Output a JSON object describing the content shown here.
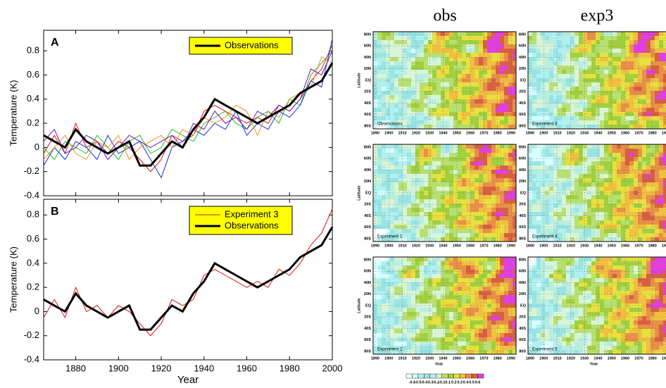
{
  "chart_data": [
    {
      "type": "line",
      "panel_label": "A",
      "ylabel": "Temperature (K)",
      "legend": "top-center",
      "x": [
        1865,
        1870,
        1875,
        1880,
        1885,
        1890,
        1895,
        1900,
        1905,
        1910,
        1915,
        1920,
        1925,
        1930,
        1935,
        1940,
        1945,
        1950,
        1955,
        1960,
        1965,
        1970,
        1975,
        1980,
        1985,
        1990,
        1995,
        2000
      ],
      "series": [
        {
          "color": "#e01010",
          "values": [
            -0.05,
            0.1,
            -0.05,
            0.2,
            0.0,
            0.05,
            -0.05,
            0.05,
            0.0,
            -0.1,
            -0.2,
            -0.1,
            0.1,
            0.05,
            0.1,
            0.3,
            0.35,
            0.3,
            0.25,
            0.2,
            0.25,
            0.2,
            0.35,
            0.3,
            0.4,
            0.55,
            0.65,
            0.85
          ]
        },
        {
          "color": "#20c020",
          "values": [
            0.0,
            -0.1,
            0.05,
            0.0,
            -0.05,
            0.1,
            0.0,
            -0.1,
            0.05,
            0.1,
            -0.05,
            0.0,
            0.15,
            0.1,
            0.05,
            0.2,
            0.25,
            0.3,
            0.2,
            0.15,
            0.25,
            0.3,
            0.2,
            0.4,
            0.35,
            0.6,
            0.7,
            0.8
          ]
        },
        {
          "color": "#1030e0",
          "values": [
            -0.15,
            0.0,
            -0.1,
            0.05,
            0.0,
            -0.1,
            0.1,
            -0.05,
            0.0,
            0.05,
            -0.1,
            -0.25,
            0.0,
            0.05,
            0.15,
            0.1,
            0.2,
            0.15,
            0.3,
            0.1,
            0.2,
            0.15,
            0.3,
            0.25,
            0.35,
            0.55,
            0.5,
            0.9
          ]
        },
        {
          "color": "#f09020",
          "values": [
            -0.1,
            0.0,
            0.1,
            -0.05,
            -0.1,
            0.05,
            0.0,
            0.1,
            -0.1,
            0.0,
            0.05,
            0.1,
            0.0,
            0.15,
            0.1,
            0.25,
            0.2,
            0.25,
            0.35,
            0.3,
            0.1,
            0.3,
            0.25,
            0.4,
            0.45,
            0.5,
            0.75,
            0.7
          ]
        },
        {
          "color": "#7010b0",
          "values": [
            0.05,
            0.15,
            -0.05,
            0.0,
            0.1,
            0.05,
            -0.1,
            0.0,
            0.1,
            0.05,
            0.0,
            0.05,
            0.1,
            0.0,
            0.2,
            0.15,
            0.3,
            0.2,
            0.25,
            0.15,
            0.3,
            0.25,
            0.35,
            0.3,
            0.4,
            0.65,
            0.6,
            0.8
          ]
        },
        {
          "name": "Observations",
          "color": "#000000",
          "values": [
            0.1,
            0.05,
            0.0,
            0.15,
            0.05,
            0.0,
            -0.05,
            0.0,
            0.05,
            -0.15,
            -0.15,
            -0.05,
            0.05,
            0.0,
            0.15,
            0.25,
            0.4,
            0.35,
            0.3,
            0.25,
            0.2,
            0.25,
            0.3,
            0.35,
            0.45,
            0.5,
            0.55,
            0.7
          ]
        }
      ],
      "xlim": [
        1865,
        2000
      ],
      "xticks": [
        1880,
        1900,
        1920,
        1940,
        1960,
        1980,
        2000
      ],
      "ylim": [
        -0.4,
        0.97
      ],
      "yticks": [
        -0.4,
        -0.2,
        0,
        0.2,
        0.4,
        0.6,
        0.8
      ]
    },
    {
      "type": "line",
      "panel_label": "B",
      "ylabel": "Temperature (K)",
      "xlabel": "Year",
      "legend": "top-center",
      "x": [
        1865,
        1870,
        1875,
        1880,
        1885,
        1890,
        1895,
        1900,
        1905,
        1910,
        1915,
        1920,
        1925,
        1930,
        1935,
        1940,
        1945,
        1950,
        1955,
        1960,
        1965,
        1970,
        1975,
        1980,
        1985,
        1990,
        1995,
        2000
      ],
      "series": [
        {
          "name": "Experiment 3",
          "color": "#e01010",
          "values": [
            -0.05,
            0.1,
            -0.05,
            0.2,
            0.0,
            0.05,
            -0.05,
            0.05,
            0.0,
            -0.1,
            -0.2,
            -0.1,
            0.1,
            0.05,
            0.1,
            0.3,
            0.35,
            0.3,
            0.25,
            0.2,
            0.25,
            0.2,
            0.35,
            0.3,
            0.4,
            0.55,
            0.65,
            0.85
          ]
        },
        {
          "name": "Observations",
          "color": "#000000",
          "values": [
            0.1,
            0.05,
            0.0,
            0.15,
            0.05,
            0.0,
            -0.05,
            0.0,
            0.05,
            -0.15,
            -0.15,
            -0.05,
            0.05,
            0.0,
            0.15,
            0.25,
            0.4,
            0.35,
            0.3,
            0.25,
            0.2,
            0.25,
            0.3,
            0.35,
            0.45,
            0.5,
            0.55,
            0.7
          ]
        }
      ],
      "xlim": [
        1865,
        2000
      ],
      "xticks": [
        1880,
        1900,
        1920,
        1940,
        1960,
        1980,
        2000
      ],
      "ylim": [
        -0.4,
        0.93
      ],
      "yticks": [
        -0.4,
        -0.2,
        0,
        0.2,
        0.4,
        0.6,
        0.8
      ]
    }
  ],
  "maps": {
    "titles": [
      "obs",
      "exp3"
    ],
    "panels": [
      "Observations",
      "Experiment 3",
      "Experiment 1",
      "Experiment 4",
      "Experiment 2",
      "Experiment 5"
    ],
    "lat_labels": [
      "80N",
      "60N",
      "40N",
      "20N",
      "EQ",
      "20S",
      "40S",
      "60S",
      "80S"
    ],
    "lat_title": "Latitude",
    "year_labels": [
      1890,
      1900,
      1910,
      1920,
      1930,
      1940,
      1950,
      1960,
      1970,
      1980,
      1990
    ],
    "year_title": "Year",
    "colorbar_labels": [
      "-0.6",
      "-0.5",
      "-0.4",
      "-0.3",
      "-0.2",
      "-0.1",
      "0.1",
      "0.2",
      "0.3",
      "0.4",
      "0.5",
      "0.6"
    ]
  }
}
